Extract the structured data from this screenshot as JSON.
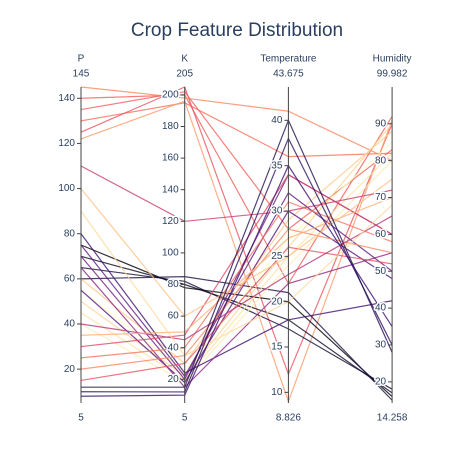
{
  "chart_data": {
    "type": "parcoords",
    "title": "Crop Feature Distribution",
    "dimensions": [
      {
        "label": "P",
        "range": [
          5,
          145
        ],
        "ticks": [
          20,
          40,
          60,
          80,
          100,
          120,
          140
        ]
      },
      {
        "label": "K",
        "range": [
          5,
          205
        ],
        "ticks": [
          20,
          40,
          60,
          80,
          100,
          120,
          140,
          160,
          180,
          200
        ]
      },
      {
        "label": "Temperature",
        "range": [
          8.826,
          43.675
        ],
        "ticks": [
          10,
          15,
          20,
          25,
          30,
          35,
          40
        ]
      },
      {
        "label": "Humidity",
        "range": [
          14.258,
          99.982
        ],
        "ticks": [
          20,
          30,
          40,
          50,
          60,
          70,
          80,
          90
        ]
      }
    ],
    "lines": [
      {
        "values": [
          140,
          200,
          22,
          92
        ],
        "color": "#f1605d"
      },
      {
        "values": [
          130,
          195,
          36,
          82
        ],
        "color": "#f7705c"
      },
      {
        "values": [
          125,
          205,
          12,
          90
        ],
        "color": "#e85362"
      },
      {
        "values": [
          145,
          198,
          41,
          80
        ],
        "color": "#fb8761"
      },
      {
        "values": [
          135,
          202,
          28,
          83
        ],
        "color": "#f1605d"
      },
      {
        "values": [
          122,
          196,
          9,
          91
        ],
        "color": "#fd9b6b"
      },
      {
        "values": [
          70,
          80,
          18,
          17
        ],
        "color": "#0b0924"
      },
      {
        "values": [
          75,
          78,
          20,
          16
        ],
        "color": "#000004"
      },
      {
        "values": [
          65,
          82,
          17,
          18
        ],
        "color": "#140e36"
      },
      {
        "values": [
          60,
          85,
          21,
          15
        ],
        "color": "#1c1044"
      },
      {
        "values": [
          55,
          25,
          27,
          85
        ],
        "color": "#fcfdbf"
      },
      {
        "values": [
          45,
          20,
          25,
          82
        ],
        "color": "#fde2a3"
      },
      {
        "values": [
          60,
          30,
          29,
          88
        ],
        "color": "#feca8d"
      },
      {
        "values": [
          40,
          18,
          24,
          80
        ],
        "color": "#fcecb3"
      },
      {
        "values": [
          50,
          22,
          26,
          90
        ],
        "color": "#fed395"
      },
      {
        "values": [
          70,
          20,
          34,
          60
        ],
        "color": "#721f81"
      },
      {
        "values": [
          55,
          18,
          30,
          48
        ],
        "color": "#51127c"
      },
      {
        "values": [
          80,
          24,
          18,
          42
        ],
        "color": "#3b0f70"
      },
      {
        "values": [
          65,
          15,
          22,
          55
        ],
        "color": "#8c2981"
      },
      {
        "values": [
          75,
          22,
          32,
          50
        ],
        "color": "#5f187f"
      },
      {
        "values": [
          20,
          35,
          28,
          55
        ],
        "color": "#fb8761"
      },
      {
        "values": [
          25,
          40,
          31,
          58
        ],
        "color": "#f7705c"
      },
      {
        "values": [
          15,
          30,
          26,
          52
        ],
        "color": "#e85362"
      },
      {
        "values": [
          30,
          48,
          34,
          60
        ],
        "color": "#de4968"
      },
      {
        "values": [
          40,
          45,
          23,
          65
        ],
        "color": "#b73779"
      },
      {
        "values": [
          35,
          50,
          27,
          70
        ],
        "color": "#feb078"
      },
      {
        "values": [
          100,
          60,
          25,
          75
        ],
        "color": "#fec287"
      },
      {
        "values": [
          110,
          120,
          30,
          72
        ],
        "color": "#c83e73"
      },
      {
        "values": [
          90,
          35,
          20,
          68
        ],
        "color": "#fdda9c"
      },
      {
        "values": [
          10,
          12,
          38,
          30
        ],
        "color": "#2c115f"
      },
      {
        "values": [
          12,
          15,
          40,
          28
        ],
        "color": "#221150"
      },
      {
        "values": [
          8,
          10,
          35,
          35
        ],
        "color": "#3b0f70"
      }
    ]
  }
}
